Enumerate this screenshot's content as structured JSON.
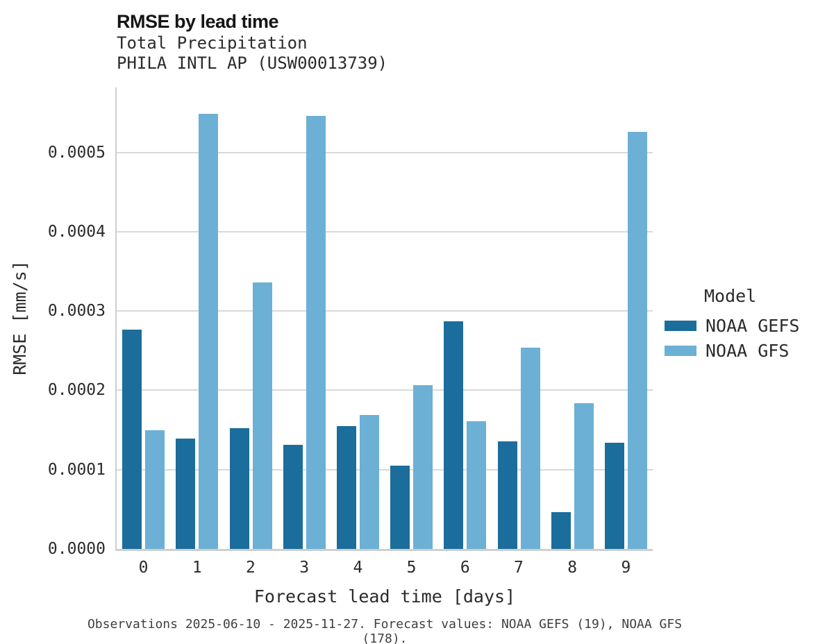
{
  "chart": {
    "title": "RMSE by lead time",
    "subtitle_variable": "Total Precipitation",
    "subtitle_station": "PHILA INTL AP (USW00013739)",
    "caption": "Observations 2025-06-10 - 2025-11-27. Forecast values: NOAA GEFS (19), NOAA GFS (178)."
  },
  "colors": {
    "noaa_gefs": "#1b6d9c",
    "noaa_gfs": "#6cb0d6",
    "grid": "#d9d9d9",
    "axis": "#cfcfcf",
    "text": "#2b2b2b",
    "caption_text": "#3f3f3f"
  },
  "chart_data": {
    "type": "bar",
    "title": "RMSE by lead time",
    "subtitle": "Total Precipitation, PHILA INTL AP (USW00013739)",
    "xlabel": "Forecast lead time [days]",
    "ylabel": "RMSE [mm/s]",
    "categories": [
      "0",
      "1",
      "2",
      "3",
      "4",
      "5",
      "6",
      "7",
      "8",
      "9"
    ],
    "series": [
      {
        "name": "NOAA GEFS",
        "color": "#1b6d9c",
        "values": [
          0.000277,
          0.000139,
          0.000152,
          0.000131,
          0.000155,
          0.000105,
          0.000287,
          0.000136,
          4.6e-05,
          0.000134
        ]
      },
      {
        "name": "NOAA GFS",
        "color": "#6cb0d6",
        "values": [
          0.00015,
          0.000549,
          0.000336,
          0.000546,
          0.000169,
          0.000207,
          0.000161,
          0.000254,
          0.000184,
          0.000526
        ]
      }
    ],
    "ylim": [
      0,
      0.000582
    ],
    "yticks": [
      0.0,
      0.0001,
      0.0002,
      0.0003,
      0.0004,
      0.0005
    ],
    "ytick_labels": [
      "0.0000",
      "0.0001",
      "0.0002",
      "0.0003",
      "0.0004",
      "0.0005"
    ],
    "grid": "horizontal",
    "legend_title": "Model",
    "legend_position": "right"
  }
}
